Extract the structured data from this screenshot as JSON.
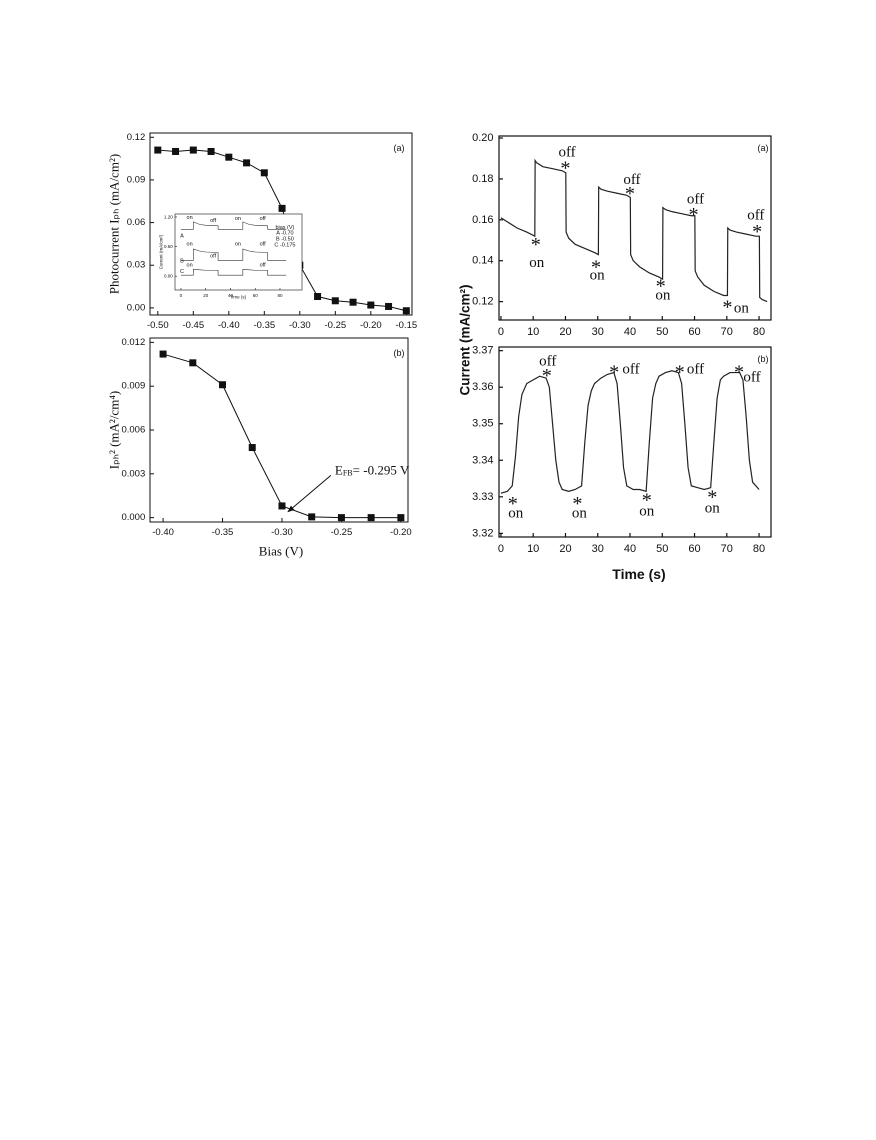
{
  "chart_data": [
    {
      "type": "line",
      "markers": true,
      "panel_label": "(a)",
      "y_label": "Photocurrent Iₚₕ (mA/cm²)",
      "xlim": [
        -0.511,
        -0.142
      ],
      "ylim": [
        -0.005,
        0.123
      ],
      "xticks": [
        {
          "value": -0.5,
          "label": "-0.50"
        },
        -0.45,
        {
          "value": -0.4,
          "label": "-0.40"
        },
        -0.35,
        {
          "value": -0.3,
          "label": "-0.30"
        },
        -0.25,
        {
          "value": -0.2,
          "label": "-0.20"
        },
        -0.15
      ],
      "yticks": [
        {
          "value": 0,
          "label": "0.00"
        },
        0.03,
        0.06,
        0.09,
        0.12
      ],
      "series": [
        {
          "color": "#111111",
          "x": [
            -0.5,
            -0.475,
            -0.45,
            -0.425,
            -0.4,
            -0.375,
            -0.35,
            -0.325,
            -0.3,
            -0.275,
            -0.25,
            -0.225,
            -0.2,
            -0.175,
            -0.15
          ],
          "values": [
            0.111,
            0.11,
            0.111,
            0.11,
            0.106,
            0.102,
            0.095,
            0.07,
            0.03,
            0.008,
            0.005,
            0.004,
            0.002,
            0.001,
            -0.002
          ]
        }
      ],
      "annotations": []
    },
    {
      "type": "line",
      "markers": true,
      "panel_label": "(b)",
      "x_label": "Bias (V)",
      "y_label": "Iₚₕ² (mA²/cm⁴)",
      "xlim": [
        -0.411,
        -0.194
      ],
      "ylim": [
        -0.0003,
        0.0123
      ],
      "xticks": [
        {
          "value": -0.4,
          "label": "-0.40"
        },
        -0.35,
        {
          "value": -0.3,
          "label": "-0.30"
        },
        -0.25,
        {
          "value": -0.2,
          "label": "-0.20"
        }
      ],
      "yticks": [
        {
          "value": 0,
          "label": "0.000"
        },
        0.003,
        0.006,
        0.009,
        0.012
      ],
      "series": [
        {
          "color": "#111111",
          "x": [
            -0.4,
            -0.375,
            -0.35,
            -0.325,
            -0.3,
            -0.275,
            -0.25,
            -0.225,
            -0.2
          ],
          "values": [
            0.0112,
            0.0106,
            0.0091,
            0.0048,
            0.0008,
            5e-05,
            0,
            0,
            0
          ]
        }
      ],
      "annotations": [
        {
          "text": "E",
          "sub": "FB",
          "tail": "= -0.295 V",
          "x": -0.2555,
          "y": 0.0033,
          "arrow_to": [
            -0.295,
            0.0004
          ]
        }
      ]
    },
    {
      "type": "line",
      "markers": false,
      "panel_label": "(a)",
      "y_label": "Current (mA/cm²)",
      "xlim": [
        -0.6,
        83.7
      ],
      "ylim": [
        0.111,
        0.201
      ],
      "xticks": [
        0,
        10,
        20,
        30,
        40,
        50,
        60,
        70,
        80
      ],
      "yticks": [
        0.12,
        0.14,
        0.16,
        0.18,
        {
          "value": 0.2,
          "label": "0.20"
        }
      ],
      "series": [
        {
          "color": "#222222",
          "x": [
            0,
            2,
            5,
            8,
            10.5,
            10.6,
            11,
            13,
            16,
            19,
            20.1,
            20.2,
            21,
            23,
            26,
            29,
            30.2,
            30.3,
            31,
            33,
            36,
            39,
            40.1,
            40.2,
            41,
            43,
            46,
            49,
            50.1,
            50.2,
            51,
            53,
            56,
            59,
            60.1,
            60.2,
            61,
            63,
            66,
            69,
            70.2,
            70.3,
            71,
            73,
            76,
            79,
            80.1,
            80.2,
            81,
            82.5
          ],
          "values": [
            0.161,
            0.159,
            0.156,
            0.154,
            0.152,
            0.189,
            0.188,
            0.186,
            0.185,
            0.184,
            0.183,
            0.154,
            0.151,
            0.148,
            0.146,
            0.144,
            0.143,
            0.176,
            0.175,
            0.174,
            0.173,
            0.172,
            0.171,
            0.143,
            0.14,
            0.137,
            0.134,
            0.132,
            0.131,
            0.166,
            0.165,
            0.164,
            0.163,
            0.162,
            0.162,
            0.135,
            0.132,
            0.128,
            0.125,
            0.123,
            0.123,
            0.156,
            0.155,
            0.154,
            0.153,
            0.152,
            0.152,
            0.122,
            0.121,
            0.12
          ]
        }
      ],
      "annotations": [
        {
          "text": "*",
          "x": 10.8,
          "y": 0.1478
        },
        {
          "text": "on",
          "x": 11.1,
          "y": 0.139
        },
        {
          "text": "off",
          "x": 20.5,
          "y": 0.193
        },
        {
          "text": "*",
          "x": 20,
          "y": 0.185
        },
        {
          "text": "*",
          "x": 29.5,
          "y": 0.1366
        },
        {
          "text": "on",
          "x": 29.8,
          "y": 0.1327
        },
        {
          "text": "off",
          "x": 40.6,
          "y": 0.1795
        },
        {
          "text": "*",
          "x": 40,
          "y": 0.1727
        },
        {
          "text": "*",
          "x": 49.5,
          "y": 0.1273
        },
        {
          "text": "on",
          "x": 50.2,
          "y": 0.1229
        },
        {
          "text": "off",
          "x": 60.3,
          "y": 0.17
        },
        {
          "text": "*",
          "x": 59.7,
          "y": 0.1624
        },
        {
          "text": "*",
          "x": 70.2,
          "y": 0.117
        },
        {
          "text": "on",
          "x": 74.5,
          "y": 0.1166
        },
        {
          "text": "off",
          "x": 79,
          "y": 0.162
        },
        {
          "text": "*",
          "x": 79.4,
          "y": 0.154
        }
      ]
    },
    {
      "type": "line",
      "markers": false,
      "panel_label": "(b)",
      "x_label": "Time (s)",
      "xlim": [
        -0.6,
        83.7
      ],
      "ylim": [
        3.319,
        3.371
      ],
      "xticks": [
        0,
        10,
        20,
        30,
        40,
        50,
        60,
        70,
        80
      ],
      "yticks": [
        3.32,
        3.33,
        3.34,
        3.35,
        3.36,
        3.37
      ],
      "series": [
        {
          "color": "#222222",
          "x": [
            0,
            2,
            3.5,
            4.5,
            5.5,
            6.5,
            8,
            10,
            12,
            14,
            15,
            16,
            17,
            18,
            19,
            21,
            23,
            25,
            26,
            27,
            28,
            29,
            31,
            33,
            35,
            36,
            37,
            38,
            39,
            41,
            43,
            45,
            46,
            47,
            48,
            49,
            51,
            53,
            55,
            56,
            57,
            58,
            59,
            61,
            63,
            65,
            66,
            67,
            68,
            69,
            71,
            73,
            74,
            75,
            76,
            77,
            78,
            80
          ],
          "values": [
            3.331,
            3.3315,
            3.333,
            3.341,
            3.352,
            3.358,
            3.361,
            3.362,
            3.363,
            3.3625,
            3.36,
            3.35,
            3.34,
            3.334,
            3.332,
            3.3315,
            3.332,
            3.333,
            3.345,
            3.355,
            3.359,
            3.361,
            3.3625,
            3.3635,
            3.364,
            3.361,
            3.35,
            3.338,
            3.333,
            3.332,
            3.332,
            3.3315,
            3.345,
            3.357,
            3.361,
            3.363,
            3.364,
            3.3645,
            3.364,
            3.361,
            3.35,
            3.338,
            3.333,
            3.3325,
            3.332,
            3.3325,
            3.345,
            3.357,
            3.362,
            3.363,
            3.364,
            3.364,
            3.364,
            3.362,
            3.352,
            3.34,
            3.334,
            3.332
          ]
        }
      ],
      "annotations": [
        {
          "text": "off",
          "x": 14.5,
          "y": 3.367
        },
        {
          "text": "*",
          "x": 14.2,
          "y": 3.363
        },
        {
          "text": "*",
          "x": 3.7,
          "y": 3.328
        },
        {
          "text": "on",
          "x": 4.6,
          "y": 3.3255
        },
        {
          "text": "*",
          "x": 23.7,
          "y": 3.328
        },
        {
          "text": "on",
          "x": 24.3,
          "y": 3.3255
        },
        {
          "text": "*",
          "x": 35.1,
          "y": 3.364
        },
        {
          "text": "off",
          "x": 40.3,
          "y": 3.3648
        },
        {
          "text": "*",
          "x": 45.2,
          "y": 3.329
        },
        {
          "text": "on",
          "x": 45.2,
          "y": 3.326
        },
        {
          "text": "*",
          "x": 55.4,
          "y": 3.364
        },
        {
          "text": "off",
          "x": 60.3,
          "y": 3.3648
        },
        {
          "text": "*",
          "x": 65.5,
          "y": 3.3298
        },
        {
          "text": "on",
          "x": 65.5,
          "y": 3.3268
        },
        {
          "text": "*",
          "x": 73.8,
          "y": 3.364
        },
        {
          "text": "off",
          "x": 77.8,
          "y": 3.3626
        }
      ]
    },
    {
      "type": "line",
      "markers": false,
      "x_label": "Time (s)",
      "y_label": "Current (mA/cm²)",
      "xlim": [
        -4.8,
        97.8
      ],
      "ylim": [
        -0.28,
        1.26
      ],
      "xticks": [
        0,
        20,
        40,
        60,
        80
      ],
      "yticks": [
        {
          "value": 0,
          "label": "0.00"
        },
        {
          "value": 0.6,
          "label": "0.60"
        },
        {
          "value": 1.2,
          "label": "1.20"
        }
      ],
      "series": [
        {
          "color": "#333333",
          "x": [
            0,
            10,
            10,
            15,
            20,
            30,
            30,
            40,
            50,
            50,
            55,
            60,
            70,
            70,
            80,
            85
          ],
          "values": [
            0.95,
            0.95,
            1.1,
            1.05,
            1.03,
            1.02,
            0.95,
            0.95,
            0.95,
            1.1,
            1.05,
            1.03,
            1.02,
            0.95,
            0.95,
            0.95
          ]
        },
        {
          "color": "#333333",
          "x": [
            0,
            10,
            10,
            15,
            20,
            30,
            30,
            40,
            50,
            50,
            55,
            60,
            70,
            70,
            80,
            85
          ],
          "values": [
            0.32,
            0.32,
            0.55,
            0.51,
            0.49,
            0.48,
            0.32,
            0.32,
            0.32,
            0.55,
            0.51,
            0.49,
            0.48,
            0.32,
            0.32,
            0.32
          ]
        },
        {
          "color": "#333333",
          "x": [
            0,
            10,
            10,
            15,
            20,
            30,
            30,
            40,
            50,
            50,
            55,
            60,
            70,
            70,
            80,
            85
          ],
          "values": [
            0.02,
            0.02,
            0.14,
            0.13,
            0.12,
            0.12,
            0.02,
            0.02,
            0.02,
            0.14,
            0.13,
            0.12,
            0.12,
            0.02,
            0.02,
            0.02
          ]
        }
      ],
      "annotations": [
        {
          "text": "A",
          "x": 0.8,
          "y": 0.8
        },
        {
          "text": "B",
          "x": 0.8,
          "y": 0.3
        },
        {
          "text": "C",
          "x": 0.8,
          "y": 0.08
        },
        {
          "text": "on",
          "x": 7,
          "y": 1.18
        },
        {
          "text": "off",
          "x": 26,
          "y": 1.12
        },
        {
          "text": "on",
          "x": 46,
          "y": 1.16
        },
        {
          "text": "off",
          "x": 66,
          "y": 1.16
        },
        {
          "text": "on",
          "x": 7,
          "y": 0.64
        },
        {
          "text": "off",
          "x": 26,
          "y": 0.4
        },
        {
          "text": "on",
          "x": 46,
          "y": 0.64
        },
        {
          "text": "off",
          "x": 66,
          "y": 0.64
        },
        {
          "text": "on",
          "x": 7,
          "y": 0.22
        },
        {
          "text": "off",
          "x": 66,
          "y": 0.22
        },
        {
          "text": "bias (V)",
          "x": 84,
          "y": 0.98
        },
        {
          "text": "A  -0.70",
          "x": 84,
          "y": 0.86
        },
        {
          "text": "B  -0.50",
          "x": 84,
          "y": 0.74
        },
        {
          "text": "C  -0.175",
          "x": 84,
          "y": 0.62
        }
      ]
    }
  ]
}
